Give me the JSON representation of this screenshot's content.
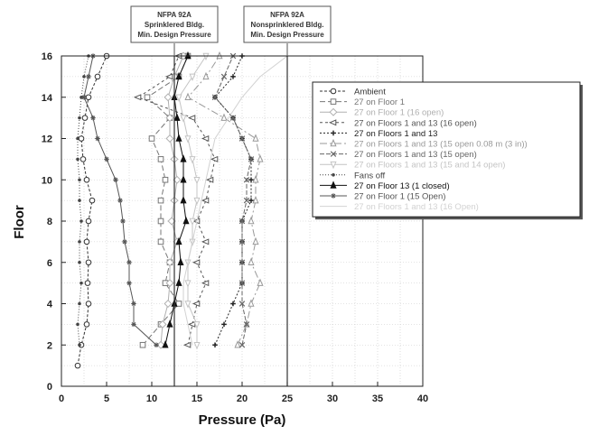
{
  "chart_data": {
    "type": "line",
    "title": "",
    "xlabel": "Pressure (Pa)",
    "ylabel": "Floor",
    "xlim": [
      0,
      40
    ],
    "ylim": [
      0,
      16
    ],
    "xticks": [
      "0",
      "5",
      "10",
      "15",
      "20",
      "25",
      "30",
      "35",
      "40"
    ],
    "yticks": [
      "0",
      "2",
      "4",
      "6",
      "8",
      "10",
      "12",
      "14",
      "16"
    ],
    "grid": true,
    "legend_position": "upper-right",
    "reference_lines": [
      {
        "x": 12.5,
        "label_lines": [
          "NFPA 92A",
          "Sprinklered Bldg.",
          "Min. Design Pressure"
        ]
      },
      {
        "x": 25,
        "label_lines": [
          "NFPA 92A",
          "Nonsprinklered Bldg.",
          "Min. Design Pressure"
        ]
      }
    ],
    "series": [
      {
        "name": "Ambient",
        "color": "#333333",
        "dash": "3,2",
        "marker": "circle",
        "points": [
          [
            1.8,
            1
          ],
          [
            2.2,
            2
          ],
          [
            2.8,
            3
          ],
          [
            3.0,
            4
          ],
          [
            2.9,
            5
          ],
          [
            3.0,
            6
          ],
          [
            2.8,
            7
          ],
          [
            3.0,
            8
          ],
          [
            3.4,
            9
          ],
          [
            2.8,
            10
          ],
          [
            2.4,
            11
          ],
          [
            2.2,
            12
          ],
          [
            2.6,
            13
          ],
          [
            3.0,
            14
          ],
          [
            4.0,
            15
          ],
          [
            5.0,
            16
          ]
        ]
      },
      {
        "name": "27 on Floor 1",
        "color": "#777777",
        "dash": "6,3",
        "marker": "square",
        "points": [
          [
            9.0,
            2
          ],
          [
            11.0,
            3
          ],
          [
            13.0,
            4
          ],
          [
            11.5,
            5
          ],
          [
            12.0,
            6
          ],
          [
            11.0,
            7
          ],
          [
            11.0,
            8
          ],
          [
            11.0,
            9
          ],
          [
            11.5,
            10
          ],
          [
            11.0,
            11
          ],
          [
            10.0,
            12
          ],
          [
            12.0,
            13
          ],
          [
            9.5,
            14
          ],
          [
            13.0,
            15
          ],
          [
            14.0,
            16
          ]
        ]
      },
      {
        "name": "27 on Floor 1 (16 open)",
        "color": "#b0b0b0",
        "dash": "",
        "marker": "diamond",
        "points": [
          [
            11.0,
            2
          ],
          [
            11.2,
            3
          ],
          [
            11.8,
            4
          ],
          [
            12.0,
            5
          ],
          [
            12.0,
            6
          ],
          [
            12.8,
            7
          ],
          [
            12.2,
            8
          ],
          [
            12.5,
            9
          ],
          [
            12.8,
            10
          ],
          [
            12.5,
            11
          ],
          [
            12.0,
            12
          ],
          [
            12.0,
            13
          ],
          [
            11.8,
            14
          ],
          [
            12.5,
            15
          ],
          [
            13.5,
            16
          ]
        ]
      },
      {
        "name": "27 on Floors 1 and 13 (16 open)",
        "color": "#555555",
        "dash": "3,3",
        "marker": "tri-left",
        "points": [
          [
            14.0,
            2
          ],
          [
            14.5,
            3
          ],
          [
            15.0,
            4
          ],
          [
            16.0,
            5
          ],
          [
            15.0,
            6
          ],
          [
            16.0,
            7
          ],
          [
            15.0,
            8
          ],
          [
            16.0,
            9
          ],
          [
            16.5,
            10
          ],
          [
            17.0,
            11
          ],
          [
            16.0,
            12
          ],
          [
            14.5,
            13
          ],
          [
            8.5,
            14
          ],
          [
            12.0,
            15
          ],
          [
            13.0,
            16
          ]
        ]
      },
      {
        "name": "27 on Floors 1 and 13",
        "color": "#222222",
        "dash": "2,2",
        "marker": "plus",
        "points": [
          [
            17.0,
            2
          ],
          [
            18.0,
            3
          ],
          [
            19.0,
            4
          ],
          [
            20.0,
            5
          ],
          [
            20.0,
            6
          ],
          [
            20.0,
            7
          ],
          [
            20.0,
            8
          ],
          [
            21.0,
            9
          ],
          [
            21.0,
            10
          ],
          [
            21.0,
            11
          ],
          [
            20.0,
            12
          ],
          [
            19.0,
            13
          ],
          [
            17.0,
            14
          ],
          [
            19.0,
            15
          ],
          [
            20.0,
            16
          ]
        ]
      },
      {
        "name": "27 on Floors 1 and 13 (15 open 0.08 m (3 in))",
        "color": "#999999",
        "dash": "8,3,2,3",
        "marker": "tri-up",
        "points": [
          [
            19.5,
            2
          ],
          [
            20.5,
            3
          ],
          [
            21.0,
            4
          ],
          [
            22.0,
            5
          ],
          [
            21.0,
            6
          ],
          [
            21.5,
            7
          ],
          [
            21.0,
            8
          ],
          [
            21.5,
            9
          ],
          [
            21.5,
            10
          ],
          [
            22.0,
            11
          ],
          [
            21.5,
            12
          ],
          [
            18.0,
            13
          ],
          [
            14.0,
            14
          ],
          [
            16.0,
            15
          ],
          [
            17.5,
            16
          ]
        ]
      },
      {
        "name": "27 on Floors 1 and 13 (15 open)",
        "color": "#666666",
        "dash": "5,2",
        "marker": "x",
        "points": [
          [
            20.0,
            2
          ],
          [
            20.5,
            3
          ],
          [
            20.0,
            4
          ],
          [
            20.0,
            5
          ],
          [
            20.0,
            6
          ],
          [
            20.0,
            7
          ],
          [
            20.0,
            8
          ],
          [
            20.5,
            9
          ],
          [
            20.5,
            10
          ],
          [
            21.0,
            11
          ],
          [
            20.0,
            12
          ],
          [
            19.0,
            13
          ],
          [
            17.0,
            14
          ],
          [
            18.0,
            15
          ],
          [
            19.0,
            16
          ]
        ]
      },
      {
        "name": "27 on Floors 1 and 13 (15 and 14 open)",
        "color": "#c4c4c4",
        "dash": "",
        "marker": "tri-down",
        "points": [
          [
            15.0,
            2
          ],
          [
            15.0,
            3
          ],
          [
            14.0,
            4
          ],
          [
            14.0,
            5
          ],
          [
            14.0,
            6
          ],
          [
            14.5,
            7
          ],
          [
            14.5,
            8
          ],
          [
            15.0,
            9
          ],
          [
            15.0,
            10
          ],
          [
            14.5,
            11
          ],
          [
            14.0,
            12
          ],
          [
            13.5,
            13
          ],
          [
            13.0,
            14
          ],
          [
            14.5,
            15
          ],
          [
            16.0,
            16
          ]
        ]
      },
      {
        "name": "Fans off",
        "color": "#444444",
        "dash": "1,2",
        "marker": "dot",
        "points": [
          [
            2.0,
            2
          ],
          [
            1.8,
            3
          ],
          [
            2.0,
            4
          ],
          [
            2.2,
            5
          ],
          [
            2.0,
            6
          ],
          [
            2.0,
            7
          ],
          [
            2.2,
            8
          ],
          [
            2.0,
            9
          ],
          [
            2.0,
            10
          ],
          [
            1.8,
            11
          ],
          [
            1.8,
            12
          ],
          [
            2.0,
            13
          ],
          [
            2.2,
            14
          ],
          [
            2.5,
            15
          ],
          [
            3.0,
            16
          ]
        ]
      },
      {
        "name": "27 on Floor 13 (1 closed)",
        "color": "#111111",
        "dash": "",
        "marker": "tri-up-fill",
        "points": [
          [
            11.5,
            2
          ],
          [
            12.0,
            3
          ],
          [
            12.5,
            4
          ],
          [
            13.0,
            5
          ],
          [
            13.2,
            6
          ],
          [
            13.0,
            7
          ],
          [
            13.8,
            8
          ],
          [
            13.5,
            9
          ],
          [
            13.5,
            10
          ],
          [
            13.5,
            11
          ],
          [
            13.0,
            12
          ],
          [
            12.8,
            13
          ],
          [
            12.5,
            14
          ],
          [
            13.0,
            15
          ],
          [
            14.0,
            16
          ]
        ]
      },
      {
        "name": "27 on Floor 1 (15 Open)",
        "color": "#555555",
        "dash": "",
        "marker": "star",
        "points": [
          [
            10.5,
            2
          ],
          [
            8.0,
            3
          ],
          [
            8.0,
            4
          ],
          [
            7.5,
            5
          ],
          [
            7.5,
            6
          ],
          [
            7.0,
            7
          ],
          [
            6.8,
            8
          ],
          [
            6.5,
            9
          ],
          [
            6.0,
            10
          ],
          [
            5.0,
            11
          ],
          [
            4.0,
            12
          ],
          [
            3.5,
            13
          ],
          [
            2.5,
            14
          ],
          [
            3.0,
            15
          ],
          [
            3.5,
            16
          ]
        ]
      },
      {
        "name": "27 on Floors 1 and 13 (16 Open)",
        "color": "#d2d2d2",
        "dash": "",
        "marker": "none",
        "points": [
          [
            14.5,
            2
          ],
          [
            14.0,
            3
          ],
          [
            13.5,
            4
          ],
          [
            13.5,
            5
          ],
          [
            14.0,
            6
          ],
          [
            14.5,
            7
          ],
          [
            15.0,
            8
          ],
          [
            15.5,
            9
          ],
          [
            16.0,
            10
          ],
          [
            16.5,
            11
          ],
          [
            17.0,
            12
          ],
          [
            18.5,
            13
          ],
          [
            20.0,
            14
          ],
          [
            22.0,
            15
          ],
          [
            25.0,
            16
          ]
        ]
      }
    ]
  }
}
